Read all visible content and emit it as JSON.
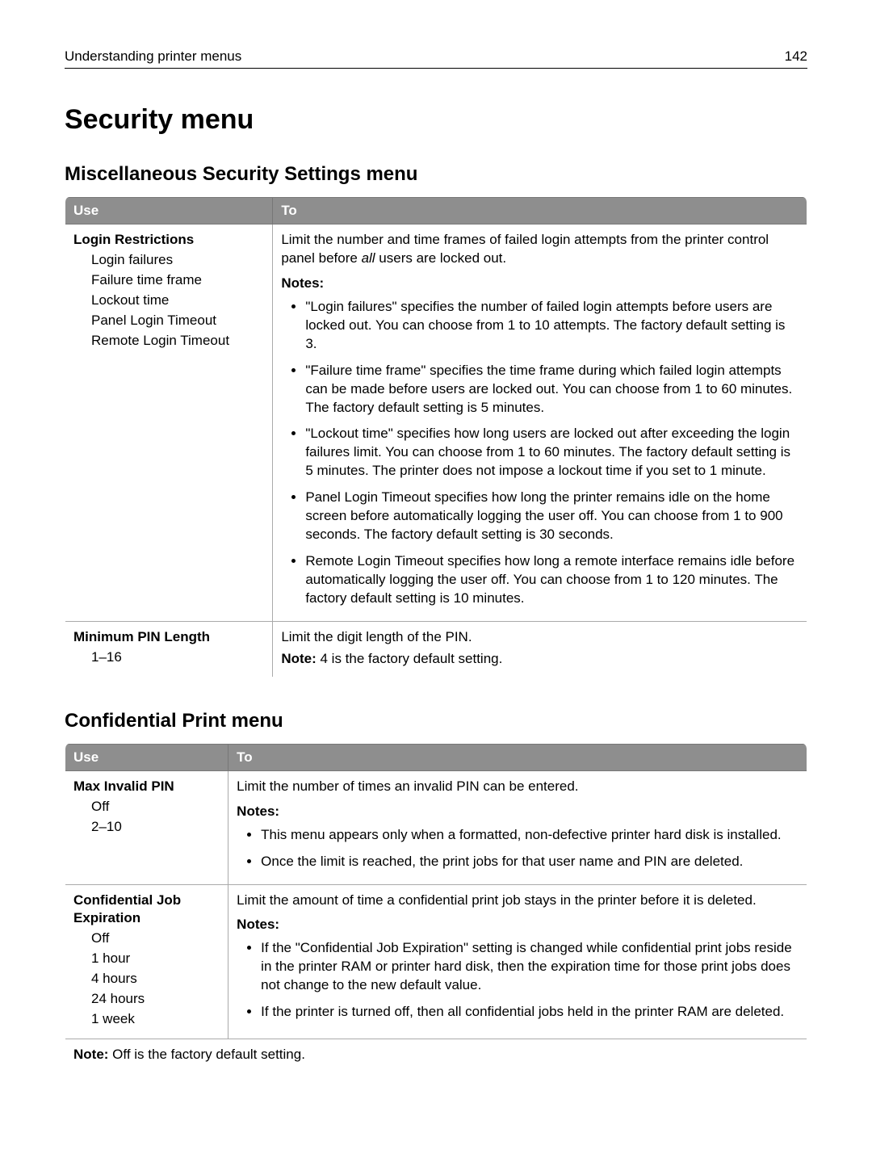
{
  "header": {
    "title": "Understanding printer menus",
    "page": "142"
  },
  "h1": "Security menu",
  "misc": {
    "title": "Miscellaneous Security Settings menu",
    "col_use": "Use",
    "col_to": "To",
    "col1_width_pct": 28,
    "r1": {
      "setting": "Login Restrictions",
      "subs": [
        "Login failures",
        "Failure time frame",
        "Lockout time",
        "Panel Login Timeout",
        "Remote Login Timeout"
      ],
      "lead_before_italic": "Limit the number and time frames of failed login attempts from the printer control panel before ",
      "lead_italic": "all",
      "lead_after_italic": " users are locked out.",
      "notes_label": "Notes:",
      "bullets": [
        "\"Login failures\" specifies the number of failed login attempts before users are locked out. You can choose from 1 to 10 attempts. The factory default setting is 3.",
        "\"Failure time frame\" specifies the time frame during which failed login attempts can be made before users are locked out. You can choose from 1 to 60 minutes. The factory default setting is 5 minutes.",
        "\"Lockout time\" specifies how long users are locked out after exceeding the login failures limit. You can choose from 1 to 60 minutes. The factory default setting is 5 minutes. The printer does not impose a lockout time if you set to 1 minute.",
        "Panel Login Timeout specifies how long the printer remains idle on the home screen before automatically logging the user off. You can choose from 1 to 900 seconds. The factory default setting is 30 seconds.",
        "Remote Login Timeout specifies how long a remote interface remains idle before automatically logging the user off. You can choose from 1 to 120 minutes. The factory default setting is 10 minutes."
      ]
    },
    "r2": {
      "setting": "Minimum PIN Length",
      "subs": [
        "1–16"
      ],
      "lead": "Limit the digit length of the PIN.",
      "note_label": "Note:",
      "note_text": " 4 is the factory default setting."
    }
  },
  "conf": {
    "title": "Confidential Print menu",
    "col_use": "Use",
    "col_to": "To",
    "col1_width_pct": 22,
    "r1": {
      "setting": "Max Invalid PIN",
      "subs": [
        "Off",
        "2–10"
      ],
      "lead": "Limit the number of times an invalid PIN can be entered.",
      "notes_label": "Notes:",
      "bullets": [
        "This menu appears only when a formatted, non-defective printer hard disk is installed.",
        "Once the limit is reached, the print jobs for that user name and PIN are deleted."
      ]
    },
    "r2": {
      "setting": "Confidential Job Expiration",
      "subs": [
        "Off",
        "1 hour",
        "4 hours",
        "24 hours",
        "1 week"
      ],
      "lead": "Limit the amount of time a confidential print job stays in the printer before it is deleted.",
      "notes_label": "Notes:",
      "bullets": [
        "If the \"Confidential Job Expiration\" setting is changed while confidential print jobs reside in the printer RAM or printer hard disk, then the expiration time for those print jobs does not change to the new default value.",
        "If the printer is turned off, then all confidential jobs held in the printer RAM are deleted."
      ]
    },
    "footer": {
      "note_label": "Note:",
      "note_text": " Off is the factory default setting."
    }
  }
}
